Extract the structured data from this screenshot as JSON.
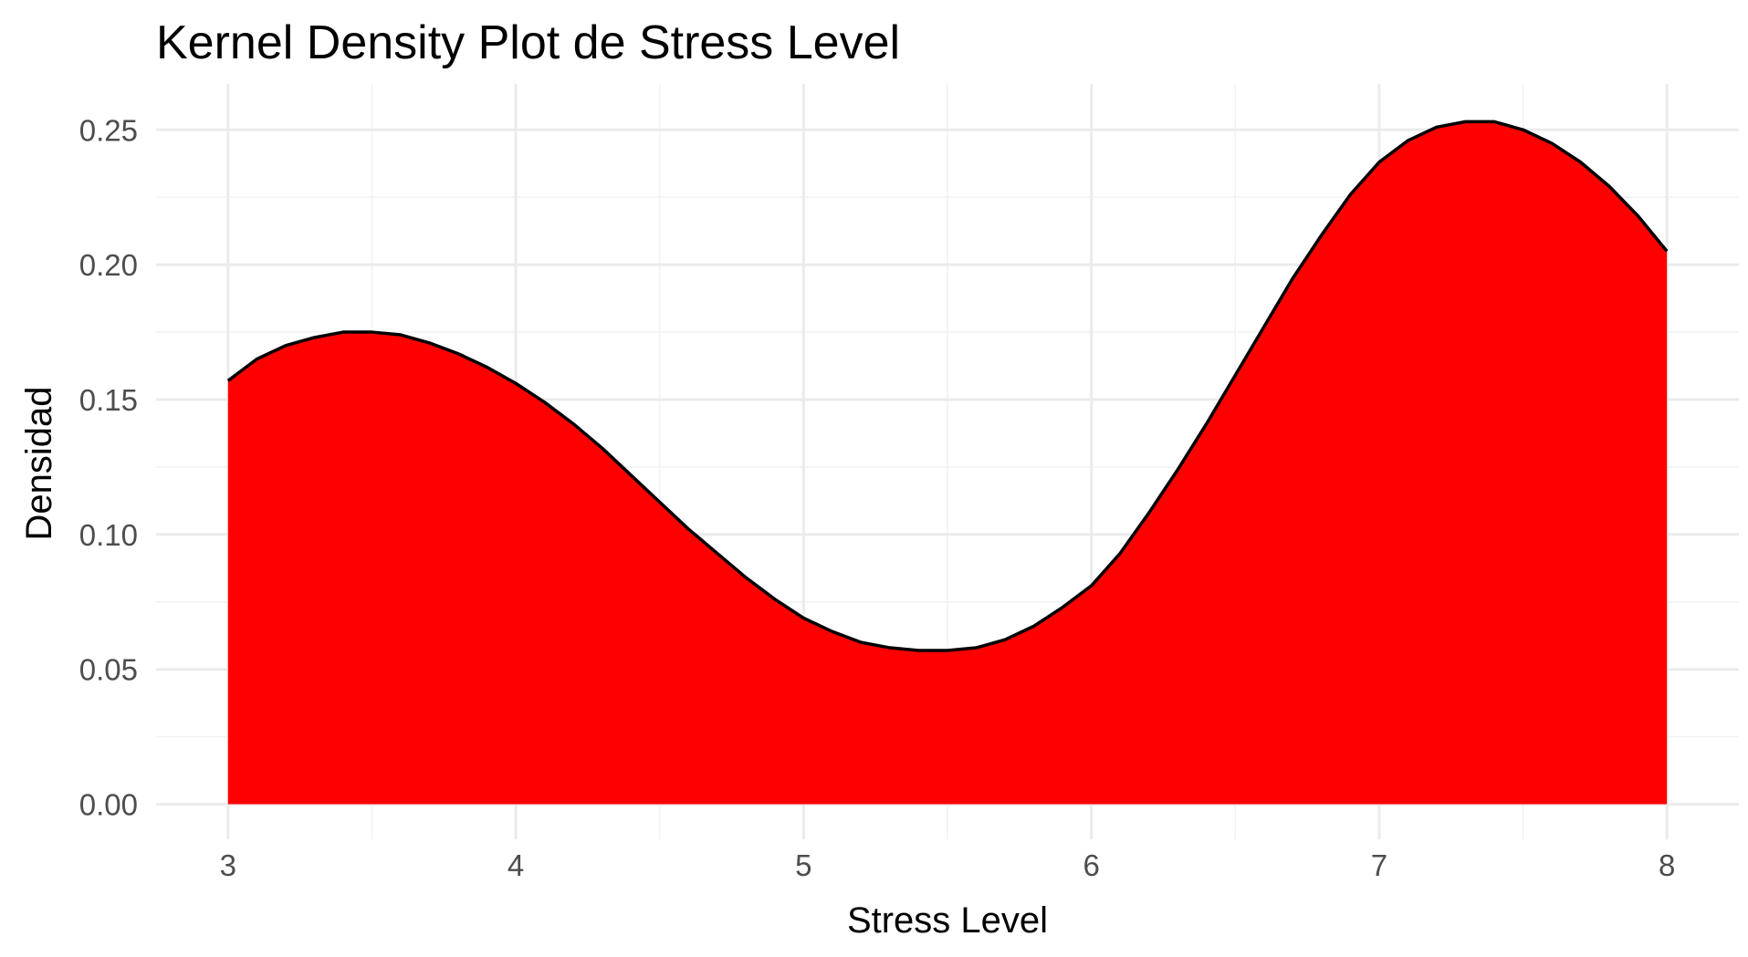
{
  "chart_data": {
    "type": "area",
    "title": "Kernel Density Plot de Stress Level",
    "xlabel": "Stress Level",
    "ylabel": "Densidad",
    "xlim": [
      2.75,
      8.25
    ],
    "ylim": [
      -0.013,
      0.267
    ],
    "x_ticks": [
      3,
      4,
      5,
      6,
      7,
      8
    ],
    "x_tick_labels": [
      "3",
      "4",
      "5",
      "6",
      "7",
      "8"
    ],
    "y_ticks": [
      0.0,
      0.05,
      0.1,
      0.15,
      0.2,
      0.25
    ],
    "y_tick_labels": [
      "0.00",
      "0.05",
      "0.10",
      "0.15",
      "0.20",
      "0.25"
    ],
    "grid": true,
    "legend": "none",
    "fill_color": "#ff0000",
    "line_color": "#000000",
    "series": [
      {
        "x": [
          3.0,
          3.1,
          3.2,
          3.3,
          3.4,
          3.5,
          3.6,
          3.7,
          3.8,
          3.9,
          4.0,
          4.1,
          4.2,
          4.3,
          4.4,
          4.5,
          4.6,
          4.7,
          4.8,
          4.9,
          5.0,
          5.1,
          5.2,
          5.3,
          5.4,
          5.5,
          5.6,
          5.7,
          5.8,
          5.9,
          6.0,
          6.1,
          6.2,
          6.3,
          6.4,
          6.5,
          6.6,
          6.7,
          6.8,
          6.9,
          7.0,
          7.1,
          7.2,
          7.3,
          7.4,
          7.5,
          7.6,
          7.7,
          7.8,
          7.9,
          8.0
        ],
        "y": [
          0.157,
          0.165,
          0.17,
          0.173,
          0.175,
          0.175,
          0.174,
          0.171,
          0.167,
          0.162,
          0.156,
          0.149,
          0.141,
          0.132,
          0.122,
          0.112,
          0.102,
          0.093,
          0.084,
          0.076,
          0.069,
          0.064,
          0.06,
          0.058,
          0.057,
          0.057,
          0.058,
          0.061,
          0.066,
          0.073,
          0.081,
          0.093,
          0.108,
          0.124,
          0.141,
          0.159,
          0.177,
          0.195,
          0.211,
          0.226,
          0.238,
          0.246,
          0.251,
          0.253,
          0.253,
          0.25,
          0.245,
          0.238,
          0.229,
          0.218,
          0.205
        ]
      }
    ]
  }
}
